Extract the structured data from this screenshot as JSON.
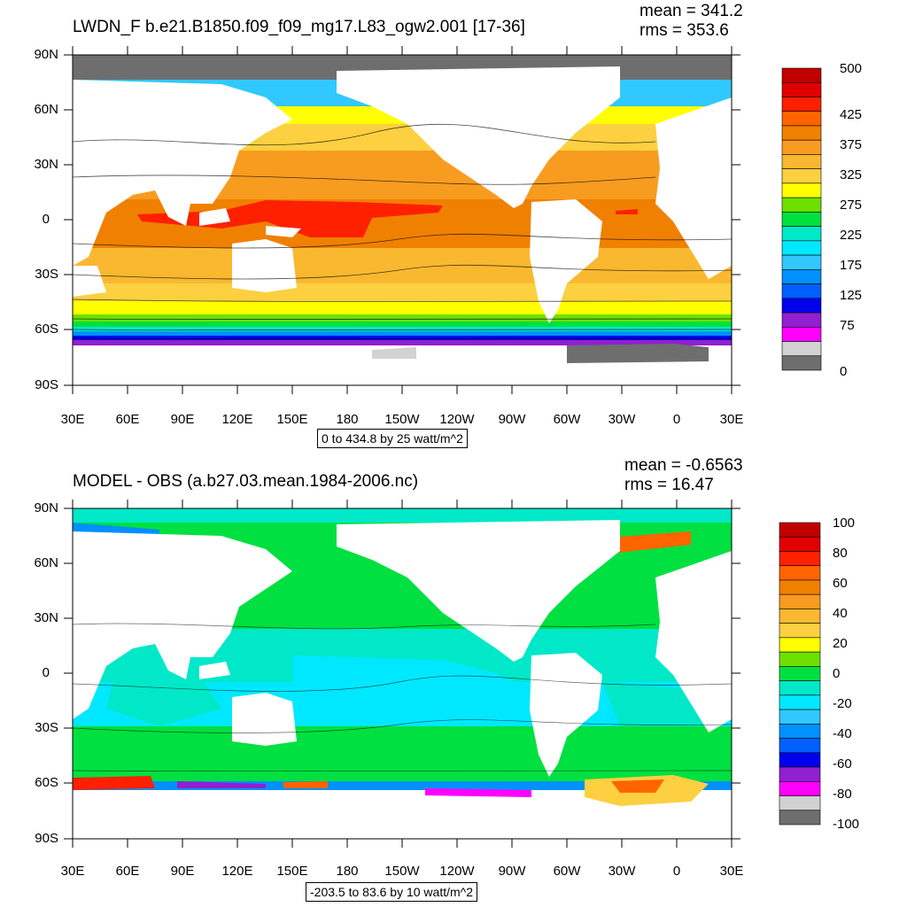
{
  "panels": [
    {
      "title": "LWDN_F b.e21.B1850.f09_f09_mg17.L83_ogw2.001 [17-36]",
      "mean": "mean = 341.2",
      "rms": "rms = 353.6",
      "range": "0 to 434.8 by 25 watt/m^2",
      "lat_ticks": [
        "90N",
        "60N",
        "30N",
        "0",
        "30S",
        "60S",
        "90S"
      ],
      "lon_ticks": [
        "30E",
        "60E",
        "90E",
        "120E",
        "150E",
        "180",
        "150W",
        "120W",
        "90W",
        "60W",
        "30W",
        "0",
        "30E"
      ],
      "colorbar_labels": [
        "500",
        "425",
        "375",
        "325",
        "275",
        "225",
        "175",
        "125",
        "75",
        "0"
      ],
      "colorbar_colors": [
        "#c00000",
        "#e00000",
        "#ff2000",
        "#ff6400",
        "#f08000",
        "#f89c20",
        "#fab830",
        "#fcd040",
        "#ffff00",
        "#6ee000",
        "#00e040",
        "#00e8c8",
        "#00e8ff",
        "#30c8ff",
        "#0090ff",
        "#0060ff",
        "#0000ee",
        "#9020d0",
        "#ff00ff",
        "#d2d2d2",
        "#6e6e6e"
      ]
    },
    {
      "title": "MODEL - OBS (a.b27.03.mean.1984-2006.nc)",
      "mean": "mean = -0.6563",
      "rms": "rms = 16.47",
      "range": "-203.5 to 83.6 by 10 watt/m^2",
      "lat_ticks": [
        "90N",
        "60N",
        "30N",
        "0",
        "30S",
        "60S",
        "90S"
      ],
      "lon_ticks": [
        "30E",
        "60E",
        "90E",
        "120E",
        "150E",
        "180",
        "150W",
        "120W",
        "90W",
        "60W",
        "30W",
        "0",
        "30E"
      ],
      "colorbar_labels": [
        "100",
        "80",
        "60",
        "40",
        "20",
        "0",
        "-20",
        "-40",
        "-60",
        "-80",
        "-100"
      ],
      "colorbar_colors": [
        "#c00000",
        "#e00000",
        "#ff2000",
        "#ff6400",
        "#f08000",
        "#f89c20",
        "#fab830",
        "#fcd040",
        "#ffff00",
        "#6ee000",
        "#00e040",
        "#00e8c8",
        "#00e8ff",
        "#30c8ff",
        "#0090ff",
        "#0060ff",
        "#0000ee",
        "#9020d0",
        "#ff00ff",
        "#d2d2d2",
        "#6e6e6e"
      ]
    }
  ]
}
